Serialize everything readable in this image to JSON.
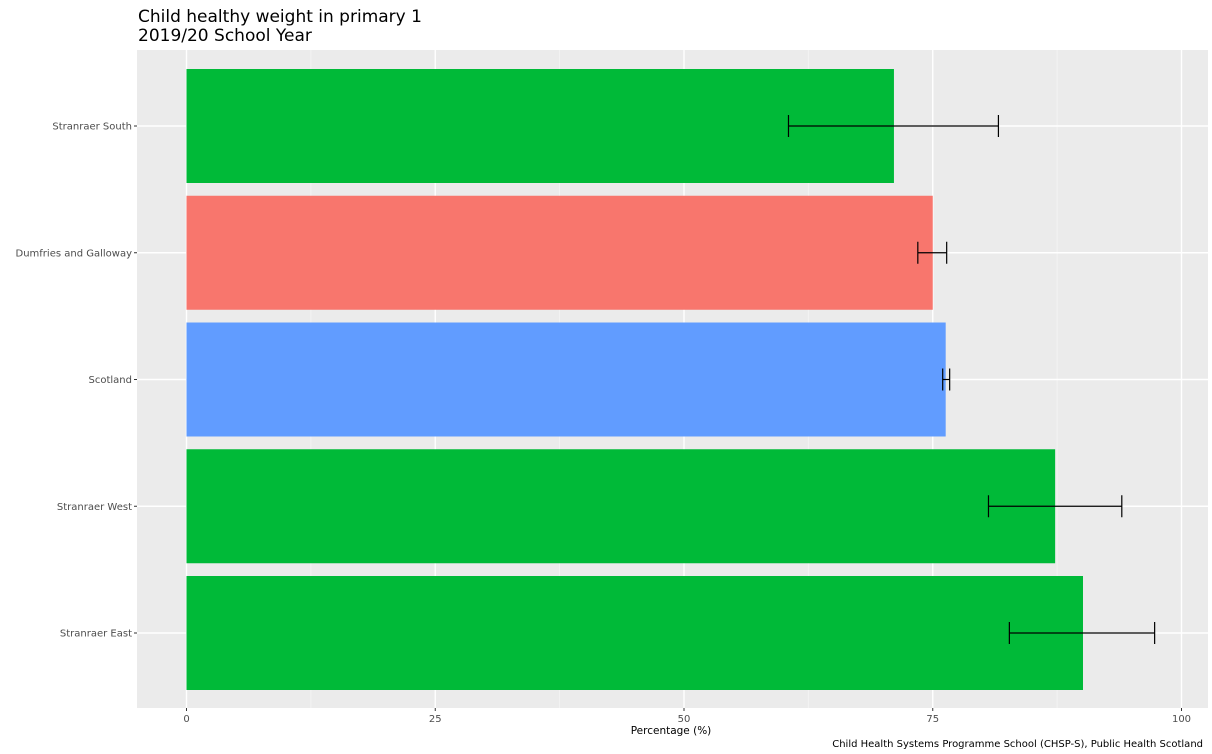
{
  "chart_data": {
    "type": "bar",
    "orientation": "horizontal",
    "title": "Child healthy weight in primary 1",
    "subtitle": "2019/20 School Year",
    "xlabel": "Percentage (%)",
    "ylabel": "",
    "caption": "Child Health Systems Programme School (CHSP-S), Public Health Scotland",
    "xlim": [
      0,
      100
    ],
    "x_ticks": [
      0,
      25,
      50,
      75,
      100
    ],
    "grid": true,
    "legend": "none",
    "categories": [
      "Stranraer South",
      "Dumfries and Galloway",
      "Scotland",
      "Stranraer West",
      "Stranraer East"
    ],
    "values": [
      71.1,
      75.0,
      76.3,
      87.3,
      90.1
    ],
    "error_low": [
      60.5,
      73.5,
      76.0,
      80.6,
      82.7
    ],
    "error_high": [
      81.6,
      76.4,
      76.7,
      94.0,
      97.3
    ],
    "colors": [
      "#00BA38",
      "#F8766D",
      "#619CFF",
      "#00BA38",
      "#00BA38"
    ]
  }
}
